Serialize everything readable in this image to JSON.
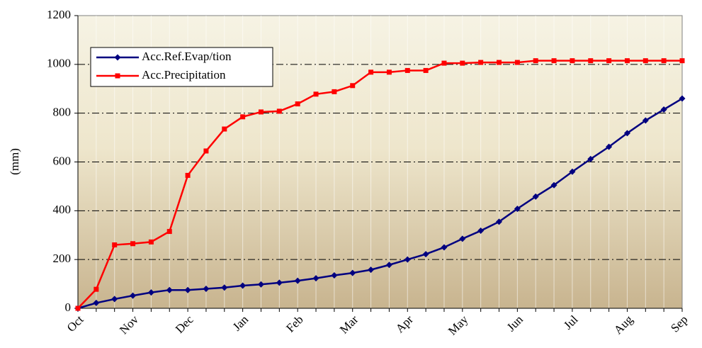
{
  "chart_data": {
    "type": "line",
    "y_label": "(mm)",
    "categories": [
      "Oct",
      null,
      null,
      "Nov",
      null,
      null,
      "Dec",
      null,
      null,
      "Jan",
      null,
      null,
      "Feb",
      null,
      null,
      "Mar",
      null,
      null,
      "Apr",
      null,
      null,
      "May",
      null,
      null,
      "Jun",
      null,
      null,
      "Jul",
      null,
      null,
      "Aug",
      null,
      null,
      "Sep"
    ],
    "series": [
      {
        "name": "Acc.Ref.Evap/tion",
        "color": "#000080",
        "marker": "diamond",
        "values": [
          0,
          22,
          38,
          52,
          65,
          75,
          75,
          80,
          85,
          93,
          98,
          105,
          113,
          123,
          135,
          145,
          158,
          178,
          200,
          222,
          250,
          285,
          318,
          355,
          408,
          458,
          505,
          560,
          612,
          662,
          718,
          770,
          815,
          860
        ]
      },
      {
        "name": "Acc.Precipitation",
        "color": "#ff0000",
        "marker": "square",
        "values": [
          0,
          78,
          260,
          265,
          272,
          315,
          545,
          645,
          735,
          785,
          805,
          808,
          838,
          878,
          888,
          913,
          968,
          968,
          975,
          975,
          1005,
          1005,
          1008,
          1008,
          1008,
          1015,
          1015,
          1015,
          1015,
          1015,
          1015,
          1015,
          1015,
          1015
        ]
      }
    ],
    "ylim": [
      0,
      1200
    ],
    "yticks": [
      0,
      200,
      400,
      600,
      800,
      1000,
      1200
    ],
    "grid": true,
    "legend": "upper left"
  }
}
